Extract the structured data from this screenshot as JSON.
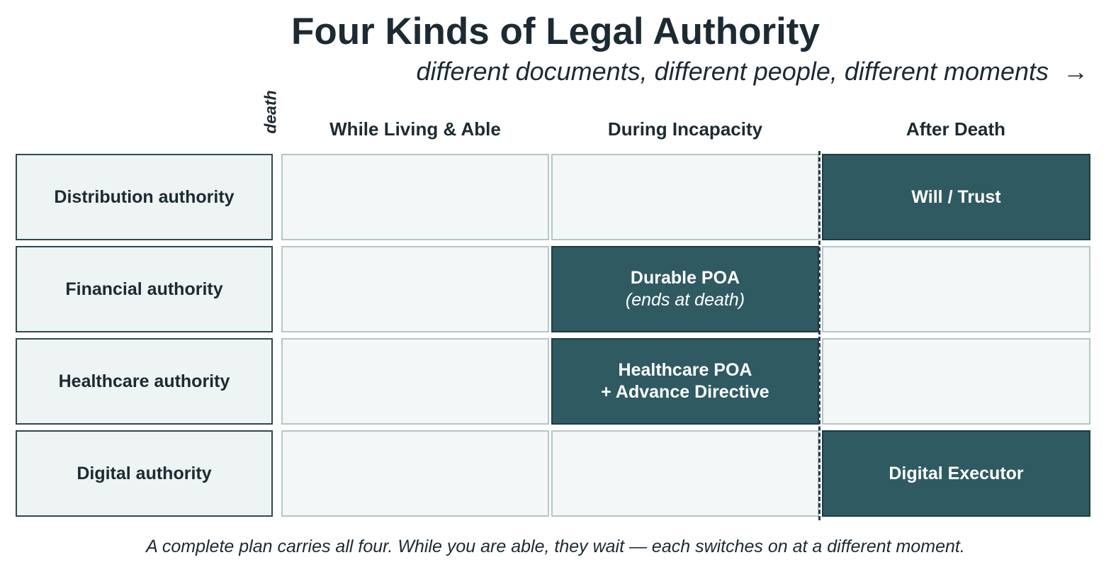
{
  "title": "Four Kinds of Legal Authority",
  "subtitle": "different documents, different people, different moments",
  "arrow": "→",
  "death_marker_label": "death",
  "columns": [
    "While Living & Able",
    "During Incapacity",
    "After Death"
  ],
  "rows": [
    {
      "label": "Distribution authority",
      "cells": [
        null,
        null,
        {
          "text": "Will / Trust"
        }
      ]
    },
    {
      "label": "Financial authority",
      "cells": [
        null,
        {
          "text": "Durable POA",
          "note": "(ends at death)"
        },
        null
      ]
    },
    {
      "label": "Healthcare authority",
      "cells": [
        null,
        {
          "text": "Healthcare POA",
          "text2": "+ Advance Directive"
        },
        null
      ]
    },
    {
      "label": "Digital authority",
      "cells": [
        null,
        null,
        {
          "text": "Digital Executor"
        }
      ]
    }
  ],
  "footer": "A complete plan carries all four. While you are able, they wait — each switches on at a different moment.",
  "colors": {
    "filled_cell": "#2f5a61",
    "label_cell": "#eef3f3",
    "empty_cell": "#f4f7f7",
    "text": "#1c2a33"
  }
}
